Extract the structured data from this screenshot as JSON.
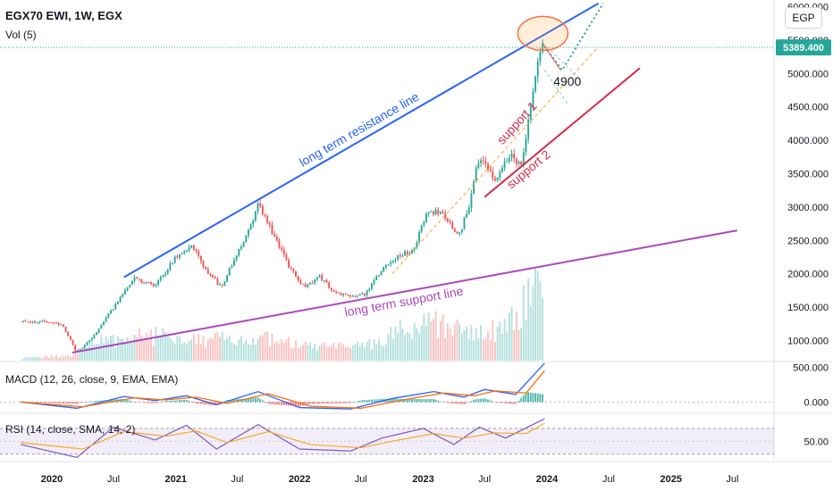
{
  "header": {
    "symbol_line": "EGX70 EWI, 1W, EGX",
    "volume_label": "Vol (5)",
    "currency": "EGP"
  },
  "price_badge": {
    "text": "5389.400",
    "color": "#26a69a"
  },
  "chart_data": [
    {
      "type": "candlestick",
      "title": "EGX70 EWI, 1W, EGX",
      "y_axis": {
        "ticks": [
          1000,
          1500,
          2000,
          2500,
          3000,
          3500,
          4000,
          4500,
          5000,
          5500,
          6000
        ],
        "tick_labels": [
          "1000.000",
          "1500.000",
          "2000.000",
          "2500.000",
          "3000.000",
          "3500.000",
          "4000.000",
          "4500.000",
          "5000.000",
          "5500.000",
          "6000.000"
        ],
        "ylim": [
          700,
          6100
        ]
      },
      "x_axis": {
        "tick_labels": [
          "2020",
          "Jul",
          "2021",
          "Jul",
          "2022",
          "Jul",
          "2023",
          "Jul",
          "2024",
          "Jul",
          "2025",
          "Jul"
        ],
        "tick_dates": [
          "2020-01-01",
          "2020-07-01",
          "2021-01-01",
          "2021-07-01",
          "2022-01-01",
          "2022-07-01",
          "2023-01-01",
          "2023-07-01",
          "2024-01-01",
          "2024-07-01",
          "2025-01-01",
          "2025-07-01"
        ],
        "xlim": [
          "2019-08-01",
          "2025-11-01"
        ]
      },
      "last_price": 5389.4,
      "price_path": [
        [
          "2019-10-01",
          1280
        ],
        [
          "2019-12-01",
          1280
        ],
        [
          "2020-01-01",
          1275
        ],
        [
          "2020-02-01",
          1230
        ],
        [
          "2020-03-15",
          820
        ],
        [
          "2020-05-01",
          1050
        ],
        [
          "2020-07-01",
          1500
        ],
        [
          "2020-09-01",
          1920
        ],
        [
          "2020-11-01",
          1820
        ],
        [
          "2021-01-01",
          2250
        ],
        [
          "2021-02-15",
          2440
        ],
        [
          "2021-04-01",
          2050
        ],
        [
          "2021-05-15",
          1800
        ],
        [
          "2021-06-15",
          2150
        ],
        [
          "2021-08-01",
          2600
        ],
        [
          "2021-09-01",
          3040
        ],
        [
          "2021-10-15",
          2600
        ],
        [
          "2021-12-01",
          2100
        ],
        [
          "2022-01-15",
          1800
        ],
        [
          "2022-03-01",
          1950
        ],
        [
          "2022-04-15",
          1720
        ],
        [
          "2022-06-01",
          1650
        ],
        [
          "2022-07-15",
          1700
        ],
        [
          "2022-09-01",
          2050
        ],
        [
          "2022-10-15",
          2250
        ],
        [
          "2022-12-01",
          2350
        ],
        [
          "2023-01-15",
          2950
        ],
        [
          "2023-03-01",
          2900
        ],
        [
          "2023-04-15",
          2550
        ],
        [
          "2023-05-15",
          3000
        ],
        [
          "2023-06-15",
          3750
        ],
        [
          "2023-08-01",
          3400
        ],
        [
          "2023-09-15",
          3800
        ],
        [
          "2023-10-15",
          3600
        ],
        [
          "2023-11-15",
          4500
        ],
        [
          "2023-12-15",
          5450
        ],
        [
          "2023-12-25",
          5389.4
        ]
      ],
      "volume_path": [
        [
          "2019-10-01",
          30
        ],
        [
          "2020-03-01",
          60
        ],
        [
          "2020-05-01",
          220
        ],
        [
          "2020-09-01",
          300
        ],
        [
          "2021-01-01",
          300
        ],
        [
          "2021-06-01",
          250
        ],
        [
          "2021-09-01",
          280
        ],
        [
          "2022-01-01",
          180
        ],
        [
          "2022-06-01",
          150
        ],
        [
          "2022-09-01",
          250
        ],
        [
          "2023-01-01",
          500
        ],
        [
          "2023-06-01",
          300
        ],
        [
          "2023-09-01",
          400
        ],
        [
          "2023-11-01",
          700
        ],
        [
          "2023-12-10",
          1100
        ],
        [
          "2023-12-25",
          900
        ]
      ],
      "annotations": [
        {
          "text": "long term resistance line",
          "color": "#2962ff",
          "from": [
            "2020-08-01",
            1950
          ],
          "to": [
            "2024-06-01",
            6050
          ]
        },
        {
          "text": "long term support line",
          "color": "#ab47bc",
          "from": [
            "2020-03-01",
            820
          ],
          "to": [
            "2025-07-15",
            2650
          ]
        },
        {
          "text": "support 1",
          "color": "#d32f4c",
          "from": [
            "2022-10-01",
            2000
          ],
          "to": [
            "2024-06-01",
            5400
          ]
        },
        {
          "text": "support 2",
          "color": "#d32f4c",
          "from": [
            "2023-07-01",
            3150
          ],
          "to": [
            "2024-10-01",
            5080
          ]
        },
        {
          "text": "4900",
          "color": "#131722",
          "at": [
            "2024-01-20",
            4820
          ]
        }
      ]
    },
    {
      "type": "line",
      "title": "MACD (12, 26, close, 9, EMA, EMA)",
      "y_axis": {
        "tick_labels": [
          "500.000",
          "0.000"
        ],
        "ticks": [
          500,
          0
        ],
        "ylim": [
          -150,
          570
        ]
      },
      "series": [
        {
          "name": "MACD",
          "color": "#2962ff",
          "points": [
            [
              "2019-10-01",
              0
            ],
            [
              "2020-03-15",
              -90
            ],
            [
              "2020-08-01",
              80
            ],
            [
              "2020-11-01",
              20
            ],
            [
              "2021-02-01",
              90
            ],
            [
              "2021-05-01",
              -40
            ],
            [
              "2021-09-01",
              150
            ],
            [
              "2022-01-01",
              -80
            ],
            [
              "2022-06-01",
              -100
            ],
            [
              "2022-10-01",
              50
            ],
            [
              "2023-02-01",
              150
            ],
            [
              "2023-05-01",
              70
            ],
            [
              "2023-07-01",
              180
            ],
            [
              "2023-10-01",
              110
            ],
            [
              "2023-12-25",
              560
            ]
          ]
        },
        {
          "name": "Signal",
          "color": "#ff6d00",
          "points": [
            [
              "2019-10-01",
              0
            ],
            [
              "2020-04-01",
              -70
            ],
            [
              "2020-09-01",
              60
            ],
            [
              "2020-12-01",
              30
            ],
            [
              "2021-03-01",
              70
            ],
            [
              "2021-06-01",
              -20
            ],
            [
              "2021-10-01",
              120
            ],
            [
              "2022-02-01",
              -60
            ],
            [
              "2022-07-01",
              -90
            ],
            [
              "2022-11-01",
              30
            ],
            [
              "2023-03-01",
              130
            ],
            [
              "2023-06-01",
              90
            ],
            [
              "2023-08-01",
              160
            ],
            [
              "2023-11-01",
              130
            ],
            [
              "2023-12-25",
              450
            ]
          ]
        }
      ]
    },
    {
      "type": "line",
      "title": "RSI (14, close, SMA, 14, 2)",
      "y_axis": {
        "tick_labels": [
          "50.00"
        ],
        "ticks": [
          50
        ],
        "ylim": [
          20,
          92
        ],
        "band": [
          30,
          70
        ]
      },
      "series": [
        {
          "name": "RSI",
          "color": "#7e57c2",
          "points": [
            [
              "2019-10-01",
              45
            ],
            [
              "2020-03-15",
              25
            ],
            [
              "2020-07-01",
              72
            ],
            [
              "2020-11-01",
              52
            ],
            [
              "2021-02-01",
              75
            ],
            [
              "2021-05-01",
              38
            ],
            [
              "2021-09-01",
              76
            ],
            [
              "2022-01-01",
              38
            ],
            [
              "2022-06-01",
              35
            ],
            [
              "2022-09-01",
              55
            ],
            [
              "2023-01-01",
              70
            ],
            [
              "2023-04-01",
              45
            ],
            [
              "2023-06-15",
              72
            ],
            [
              "2023-09-01",
              55
            ],
            [
              "2023-12-25",
              85
            ]
          ]
        },
        {
          "name": "RSI-based MA",
          "color": "#f9a825",
          "points": [
            [
              "2019-10-01",
              48
            ],
            [
              "2020-04-01",
              38
            ],
            [
              "2020-08-01",
              65
            ],
            [
              "2020-12-01",
              58
            ],
            [
              "2021-03-01",
              66
            ],
            [
              "2021-06-01",
              48
            ],
            [
              "2021-10-01",
              65
            ],
            [
              "2022-02-01",
              45
            ],
            [
              "2022-07-01",
              40
            ],
            [
              "2022-10-01",
              50
            ],
            [
              "2023-02-01",
              62
            ],
            [
              "2023-05-01",
              55
            ],
            [
              "2023-08-01",
              63
            ],
            [
              "2023-11-01",
              62
            ],
            [
              "2023-12-25",
              78
            ]
          ]
        }
      ]
    }
  ]
}
